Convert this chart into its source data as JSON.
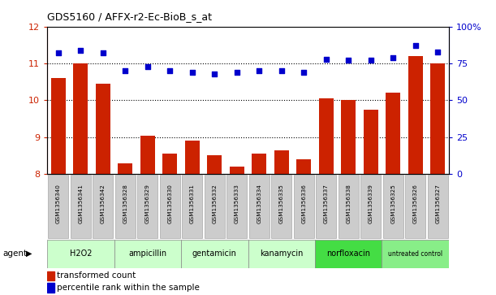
{
  "title": "GDS5160 / AFFX-r2-Ec-BioB_s_at",
  "samples": [
    "GSM1356340",
    "GSM1356341",
    "GSM1356342",
    "GSM1356328",
    "GSM1356329",
    "GSM1356330",
    "GSM1356331",
    "GSM1356332",
    "GSM1356333",
    "GSM1356334",
    "GSM1356335",
    "GSM1356336",
    "GSM1356337",
    "GSM1356338",
    "GSM1356339",
    "GSM1356325",
    "GSM1356326",
    "GSM1356327"
  ],
  "bar_values": [
    10.6,
    11.0,
    10.45,
    8.3,
    9.05,
    8.55,
    8.9,
    8.5,
    8.2,
    8.55,
    8.65,
    8.4,
    10.05,
    10.0,
    9.75,
    10.2,
    11.2,
    11.0
  ],
  "scatter_values": [
    82,
    84,
    82,
    70,
    73,
    70,
    69,
    68,
    69,
    70,
    70,
    69,
    78,
    77,
    77,
    79,
    87,
    83
  ],
  "agents": [
    {
      "name": "H2O2",
      "start": 0,
      "end": 3,
      "color": "#ccffcc"
    },
    {
      "name": "ampicillin",
      "start": 3,
      "end": 6,
      "color": "#ccffcc"
    },
    {
      "name": "gentamicin",
      "start": 6,
      "end": 9,
      "color": "#ccffcc"
    },
    {
      "name": "kanamycin",
      "start": 9,
      "end": 12,
      "color": "#ccffcc"
    },
    {
      "name": "norfloxacin",
      "start": 12,
      "end": 15,
      "color": "#44dd44"
    },
    {
      "name": "untreated control",
      "start": 15,
      "end": 18,
      "color": "#88ee88"
    }
  ],
  "ylim_left": [
    8,
    12
  ],
  "ylim_right": [
    0,
    100
  ],
  "yticks_left": [
    8,
    9,
    10,
    11,
    12
  ],
  "yticks_right": [
    0,
    25,
    50,
    75,
    100
  ],
  "bar_color": "#cc2200",
  "scatter_color": "#0000cc",
  "agent_label": "agent",
  "legend_bar": "transformed count",
  "legend_scatter": "percentile rank within the sample",
  "grid_lines": [
    9,
    10,
    11
  ],
  "sample_box_color": "#cccccc",
  "sample_box_edge": "#999999"
}
